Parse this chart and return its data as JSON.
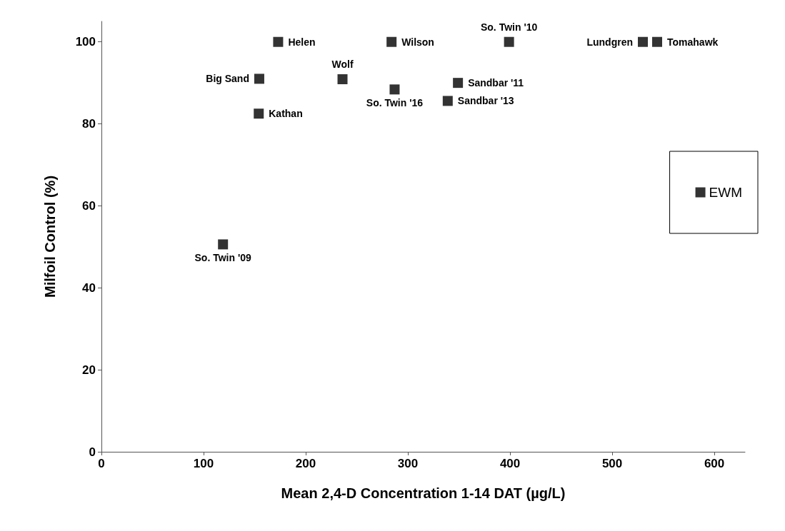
{
  "chart_data": {
    "type": "scatter",
    "xlabel": "Mean 2,4-D Concentration 1-14 DAT (µg/L)",
    "ylabel": "Milfoil Control (%)",
    "x": [
      119,
      154.5,
      154,
      173,
      236,
      284,
      287,
      339,
      349,
      399,
      530,
      544
    ],
    "series": [
      {
        "name": "EWM",
        "color": "#000000",
        "values": [
          50.6,
          91,
          82.5,
          100,
          90.9,
          100,
          88.4,
          85.6,
          90,
          100,
          100,
          100
        ]
      }
    ],
    "xlim": [
      0,
      630
    ],
    "xticks": [
      0,
      100,
      200,
      300,
      400,
      500,
      600
    ],
    "ylim": [
      0,
      105
    ],
    "yticks": [
      0,
      20,
      40,
      60,
      80,
      100
    ],
    "grid": false,
    "legend": "right",
    "marker": "square",
    "annotations": [
      {
        "text": "So. Twin '09",
        "x": 119,
        "y": 50.6
      },
      {
        "text": "Big Sand",
        "x": 154.5,
        "y": 91
      },
      {
        "text": "Kathan",
        "x": 154,
        "y": 82.5
      },
      {
        "text": "Helen",
        "x": 173,
        "y": 100
      },
      {
        "text": "Wolf",
        "x": 236,
        "y": 90.9
      },
      {
        "text": "Wilson",
        "x": 284,
        "y": 100
      },
      {
        "text": "So. Twin '16",
        "x": 287,
        "y": 88.4
      },
      {
        "text": "Sandbar '13",
        "x": 339,
        "y": 85.6
      },
      {
        "text": "Sandbar '11",
        "x": 349,
        "y": 90
      },
      {
        "text": "So. Twin '10",
        "x": 399,
        "y": 100
      },
      {
        "text": "Lundgren",
        "x": 530,
        "y": 100
      },
      {
        "text": "Tomahawk",
        "x": 544,
        "y": 100
      }
    ]
  }
}
